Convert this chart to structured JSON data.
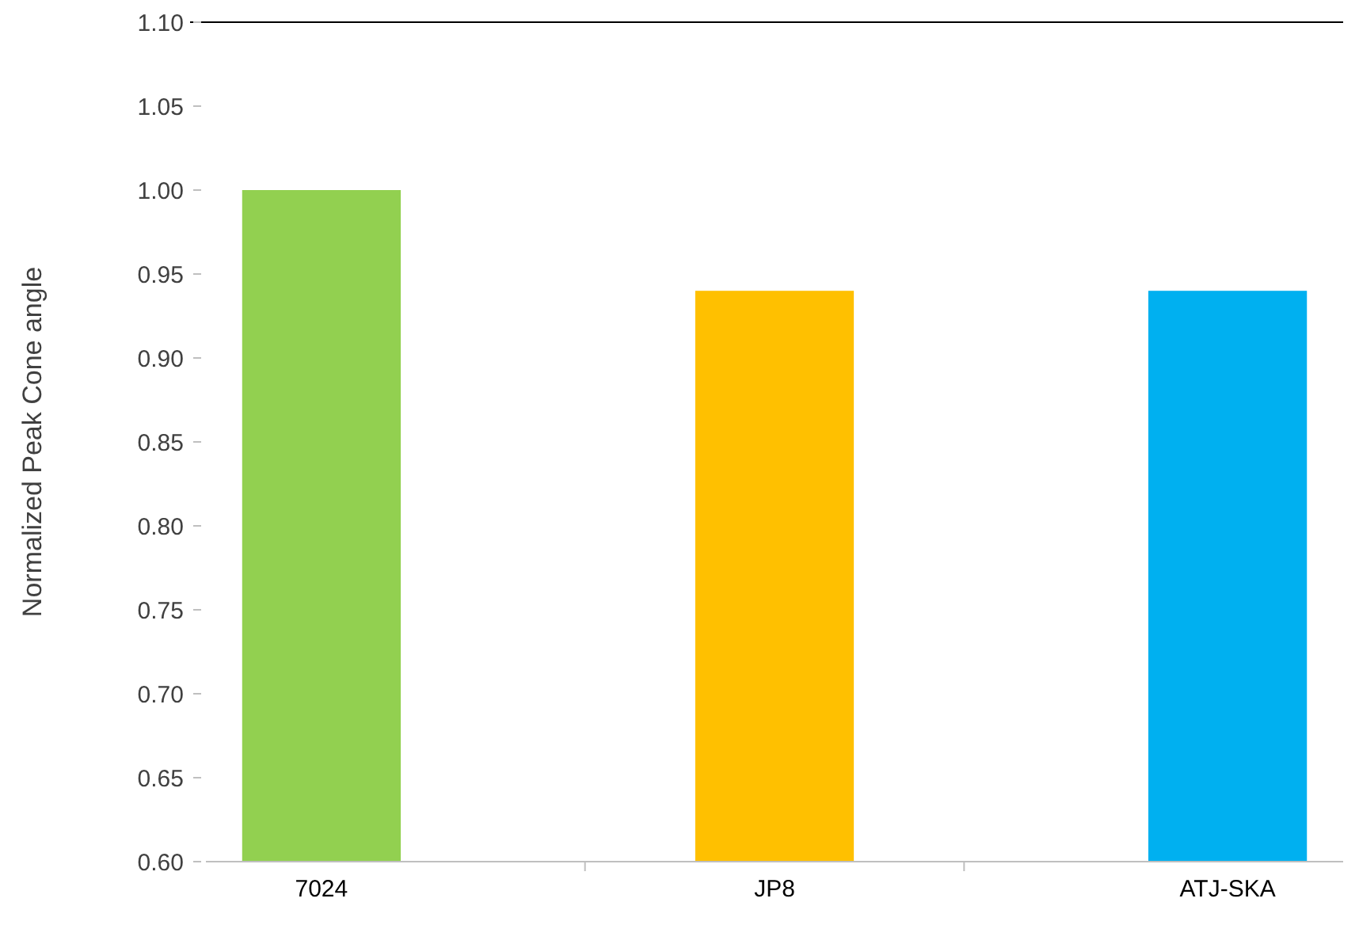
{
  "chart_data": {
    "type": "bar",
    "ylabel": "Normalized Peak Cone angle",
    "categories": [
      "7024",
      "JP8",
      "ATJ-SKA"
    ],
    "values": [
      1.0,
      0.94,
      0.94
    ],
    "colors": [
      "#92d050",
      "#ffc000",
      "#00b0f0"
    ],
    "ylim": [
      0.6,
      1.1
    ],
    "yticks": [
      {
        "value": 0.6,
        "label": "0.60"
      },
      {
        "value": 0.65,
        "label": "0.65"
      },
      {
        "value": 0.7,
        "label": "0.70"
      },
      {
        "value": 0.75,
        "label": "0.75"
      },
      {
        "value": 0.8,
        "label": "0.80"
      },
      {
        "value": 0.85,
        "label": "0.85"
      },
      {
        "value": 0.9,
        "label": "0.90"
      },
      {
        "value": 0.95,
        "label": "0.95"
      },
      {
        "value": 1.0,
        "label": "1.00"
      },
      {
        "value": 1.05,
        "label": "1.05"
      },
      {
        "value": 1.1,
        "label": "1.10"
      }
    ],
    "grid": false
  }
}
